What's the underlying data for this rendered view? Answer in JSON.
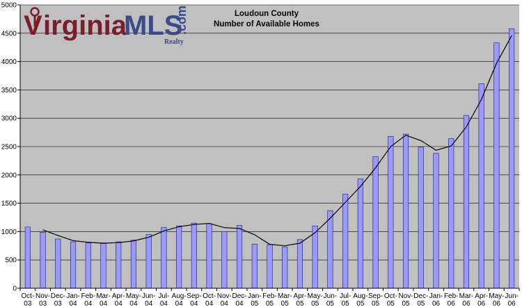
{
  "logo": {
    "letter_v": "V",
    "text_irginia": "irginia",
    "text_mls": "MLS",
    "text_com": ".com",
    "text_realty": "Realty",
    "primary_color": "#7a1e2a",
    "secondary_color": "#3a4a8a"
  },
  "chart_data": {
    "type": "bar",
    "title": "Loudoun County",
    "subtitle": "Number of Available Homes",
    "xlabel": "",
    "ylabel": "",
    "ylim": [
      0,
      5000
    ],
    "yticks": [
      0,
      500,
      1000,
      1500,
      2000,
      2500,
      3000,
      3500,
      4000,
      4500,
      5000
    ],
    "grid": true,
    "legend": "none",
    "plot_background": "#c0c0c0",
    "bar_color": "#9999ff",
    "line_color": "#000000",
    "categories": [
      [
        "Oct-",
        "03"
      ],
      [
        "Nov-",
        "03"
      ],
      [
        "Dec-",
        "03"
      ],
      [
        "Jan-",
        "04"
      ],
      [
        "Feb-",
        "04"
      ],
      [
        "Mar-",
        "04"
      ],
      [
        "Apr-",
        "04"
      ],
      [
        "May-",
        "04"
      ],
      [
        "Jun-",
        "04"
      ],
      [
        "Jul-",
        "04"
      ],
      [
        "Aug-",
        "04"
      ],
      [
        "Sep-",
        "04"
      ],
      [
        "Oct-",
        "04"
      ],
      [
        "Nov-",
        "04"
      ],
      [
        "Dec-",
        "04"
      ],
      [
        "Jan-",
        "05"
      ],
      [
        "Feb-",
        "05"
      ],
      [
        "Mar-",
        "05"
      ],
      [
        "Apr-",
        "05"
      ],
      [
        "May-",
        "05"
      ],
      [
        "Jun-",
        "05"
      ],
      [
        "Jul-",
        "05"
      ],
      [
        "Aug-",
        "05"
      ],
      [
        "Sep-",
        "05"
      ],
      [
        "Oct-",
        "05"
      ],
      [
        "Nov-",
        "05"
      ],
      [
        "Dec-",
        "05"
      ],
      [
        "Jan-",
        "06"
      ],
      [
        "Feb-",
        "06"
      ],
      [
        "Mar-",
        "06"
      ],
      [
        "Apr-",
        "06"
      ],
      [
        "May-",
        "06"
      ],
      [
        "Jun-",
        "06"
      ]
    ],
    "series": [
      {
        "type": "bar",
        "values": [
          1080,
          990,
          870,
          820,
          800,
          790,
          820,
          850,
          950,
          1070,
          1100,
          1150,
          1140,
          1000,
          1110,
          780,
          770,
          730,
          860,
          1100,
          1370,
          1660,
          1930,
          2320,
          2680,
          2720,
          2490,
          2380,
          2640,
          3050,
          3610,
          4330,
          4580
        ]
      },
      {
        "type": "line",
        "values": [
          null,
          1030,
          930,
          840,
          810,
          795,
          805,
          835,
          900,
          1010,
          1085,
          1125,
          1145,
          1070,
          1055,
          945,
          775,
          750,
          795,
          980,
          1235,
          1515,
          1795,
          2125,
          2500,
          2700,
          2605,
          2435,
          2510,
          2845,
          3330,
          3970,
          4455
        ]
      }
    ]
  }
}
